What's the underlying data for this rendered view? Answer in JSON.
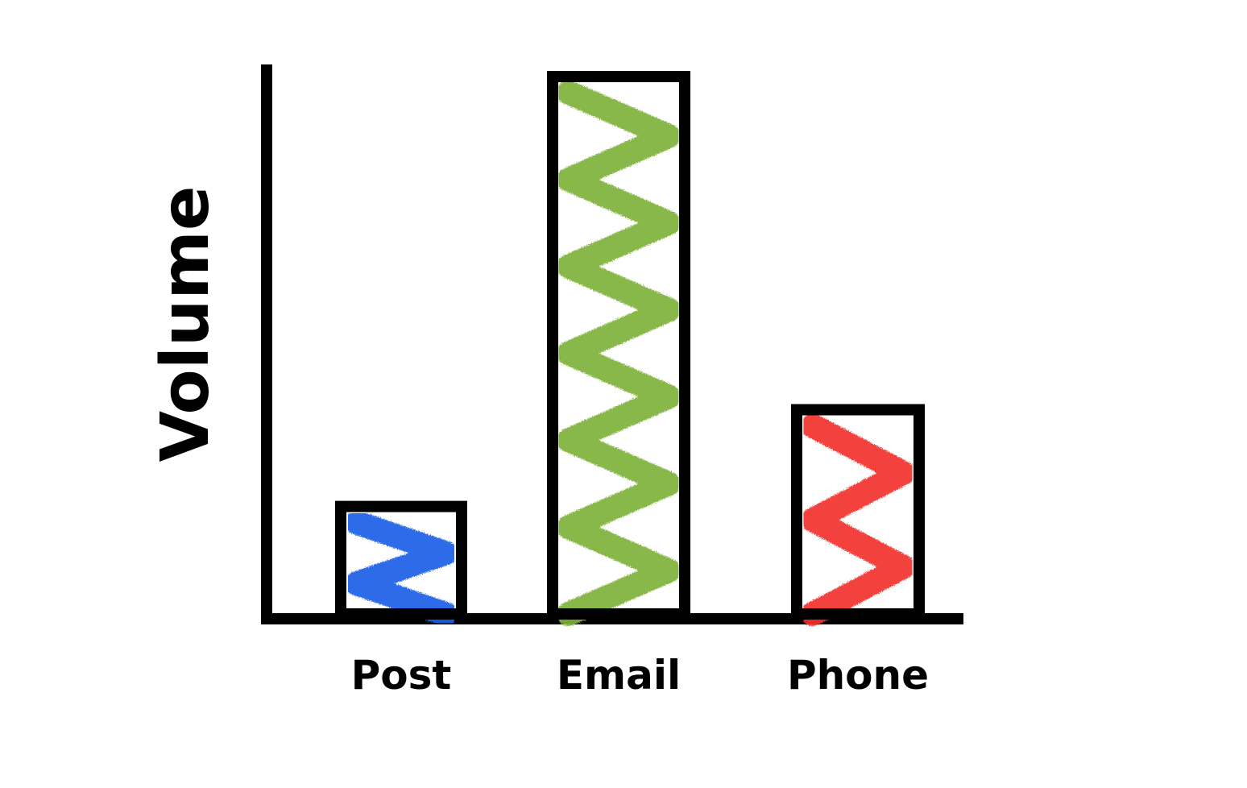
{
  "chart_data": {
    "type": "bar",
    "categories": [
      "Post",
      "Email",
      "Phone"
    ],
    "values": [
      20,
      100,
      38
    ],
    "colors": [
      "#1a5fe8",
      "#7fb23a",
      "#f2312f"
    ],
    "title": "",
    "xlabel": "",
    "ylabel": "Volume",
    "ylim": [
      0,
      100
    ],
    "grid": false,
    "legend": "none",
    "style": "hand-drawn scribble fill"
  }
}
